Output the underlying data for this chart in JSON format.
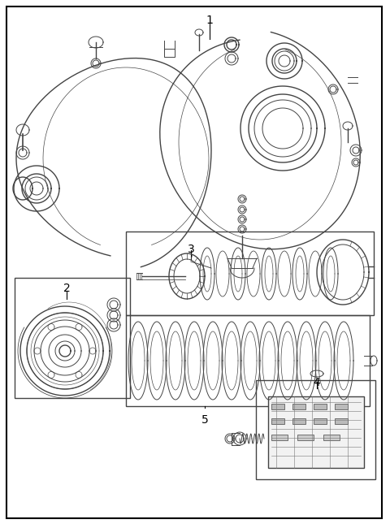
{
  "background_color": "#ffffff",
  "border_color": "#000000",
  "line_color": "#444444",
  "text_color": "#000000",
  "lw_thin": 0.7,
  "lw_med": 1.0,
  "lw_thick": 1.4
}
